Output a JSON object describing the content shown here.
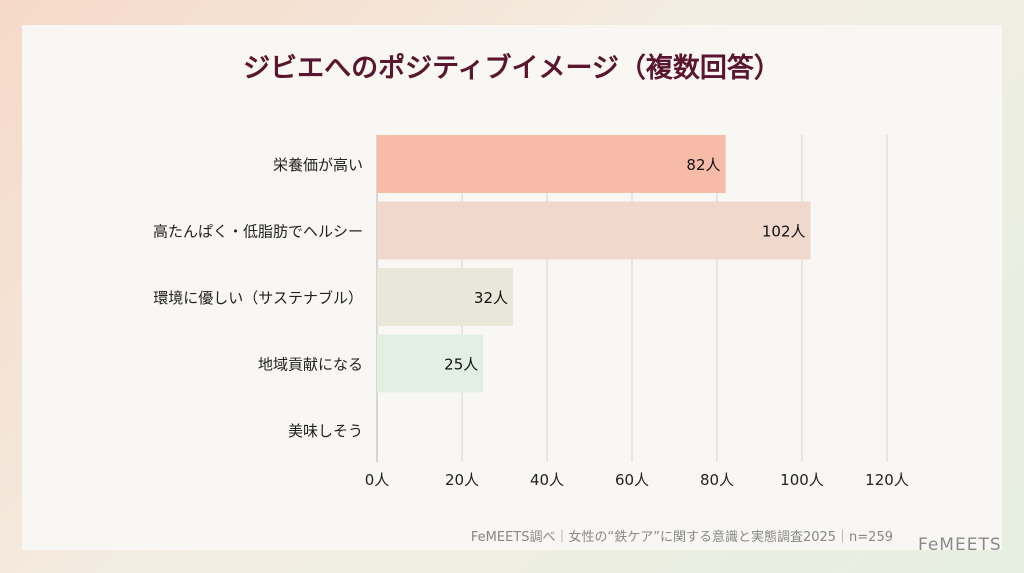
{
  "chart_data": {
    "type": "bar",
    "orientation": "horizontal",
    "title": "ジビエへのポジティブイメージ（複数回答）",
    "categories": [
      "栄養価が高い",
      "高たんぱく・低脂肪でヘルシー",
      "環境に優しい（サステナブル）",
      "地域貢献になる",
      "美味しそう"
    ],
    "values": [
      82,
      102,
      32,
      25,
      0
    ],
    "data_labels": [
      "82人",
      "102人",
      "32人",
      "25人",
      ""
    ],
    "colors": [
      "#f8bba8",
      "#f0d8cc",
      "#e9e6da",
      "#e3efe3",
      "#f3e6e0"
    ],
    "xlim": [
      0,
      120
    ],
    "ticks": [
      0,
      20,
      40,
      60,
      80,
      100,
      120
    ],
    "tick_labels": [
      "0人",
      "20人",
      "40人",
      "60人",
      "80人",
      "100人",
      "120人"
    ],
    "grid": true
  },
  "source": "FeMEETS調べ｜女性の“鉄ケア”に関する意識と実態調査2025｜n=259",
  "logo": "FeMEETS"
}
